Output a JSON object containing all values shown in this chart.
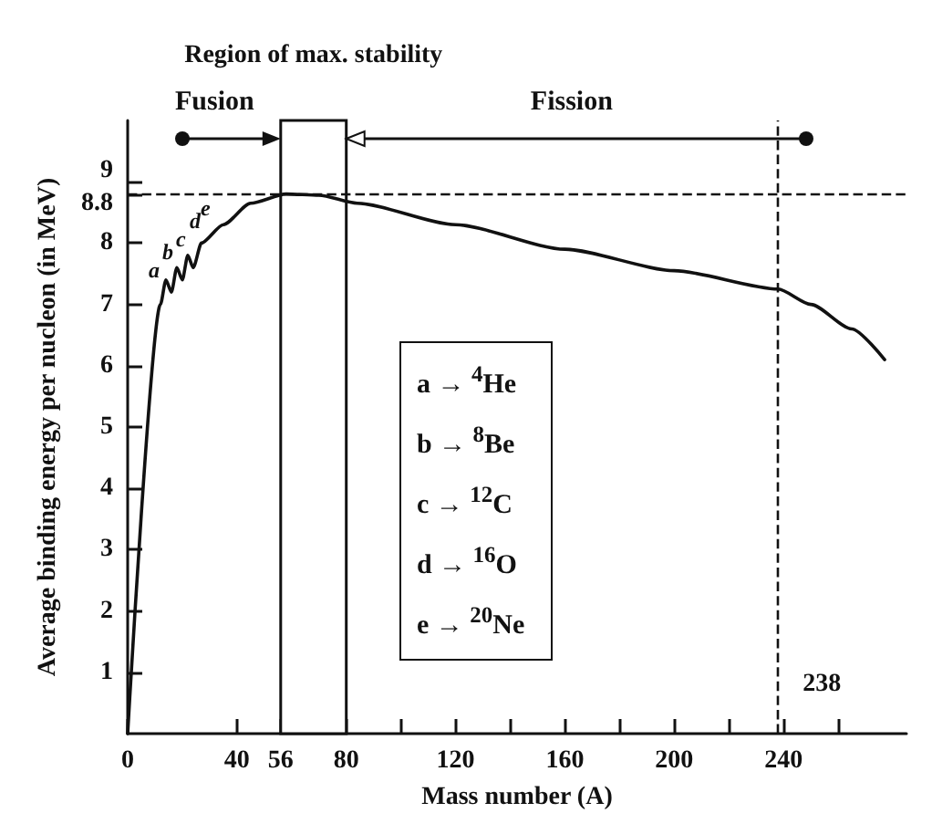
{
  "chart_data": {
    "type": "line",
    "xlabel": "Mass number (A)",
    "ylabel": "Average binding energy per nucleon (in MeV)",
    "x": [
      0,
      12,
      14,
      16,
      18,
      20,
      22,
      24,
      27,
      35,
      45,
      58,
      70,
      84,
      120,
      160,
      200,
      238,
      250,
      265,
      277
    ],
    "series": [
      {
        "color": "#111111",
        "values": [
          0,
          7.0,
          7.4,
          7.2,
          7.6,
          7.4,
          7.8,
          7.6,
          8.0,
          8.3,
          8.65,
          8.8,
          8.78,
          8.65,
          8.3,
          7.9,
          7.55,
          7.25,
          7.0,
          6.6,
          6.1
        ]
      }
    ],
    "xlim": [
      0,
      285
    ],
    "ylim": [
      0,
      10
    ],
    "xticks": [
      0,
      40,
      56,
      80,
      {
        "value": 100,
        "label": null
      },
      120,
      {
        "value": 140,
        "label": null
      },
      160,
      {
        "value": 180,
        "label": null
      },
      200,
      {
        "value": 220,
        "label": null
      },
      240,
      {
        "value": 260,
        "label": null
      }
    ],
    "yticks": [
      1,
      2,
      3,
      4,
      5,
      6,
      7,
      8,
      8.8,
      9
    ],
    "ref_lines": [
      {
        "axis": "y",
        "value": 8.8,
        "label": null,
        "line_style": "dashed"
      },
      {
        "axis": "x",
        "value": 238,
        "label": "238",
        "line_style": "dashed"
      }
    ],
    "bands": [
      {
        "axis": "x",
        "from": 56,
        "to": 80,
        "label": "Region of max. stability",
        "color": "#ffffff"
      }
    ],
    "annotations": [
      "Fusion",
      "Fission",
      "a → $^{4}$He",
      "b → $^{8}$Be",
      "c → $^{12}$C",
      "d → $^{16}$O",
      "e → $^{20}$Ne",
      {
        "text": "a",
        "x": 13,
        "y": 7.3
      },
      {
        "text": "b",
        "x": 18,
        "y": 7.6
      },
      {
        "text": "c",
        "x": 23,
        "y": 7.8
      },
      {
        "text": "d",
        "x": 28,
        "y": 8.1
      },
      {
        "text": "e",
        "x": 32,
        "y": 8.3
      }
    ],
    "grid": false,
    "marker": "none",
    "line_style": "solid"
  }
}
